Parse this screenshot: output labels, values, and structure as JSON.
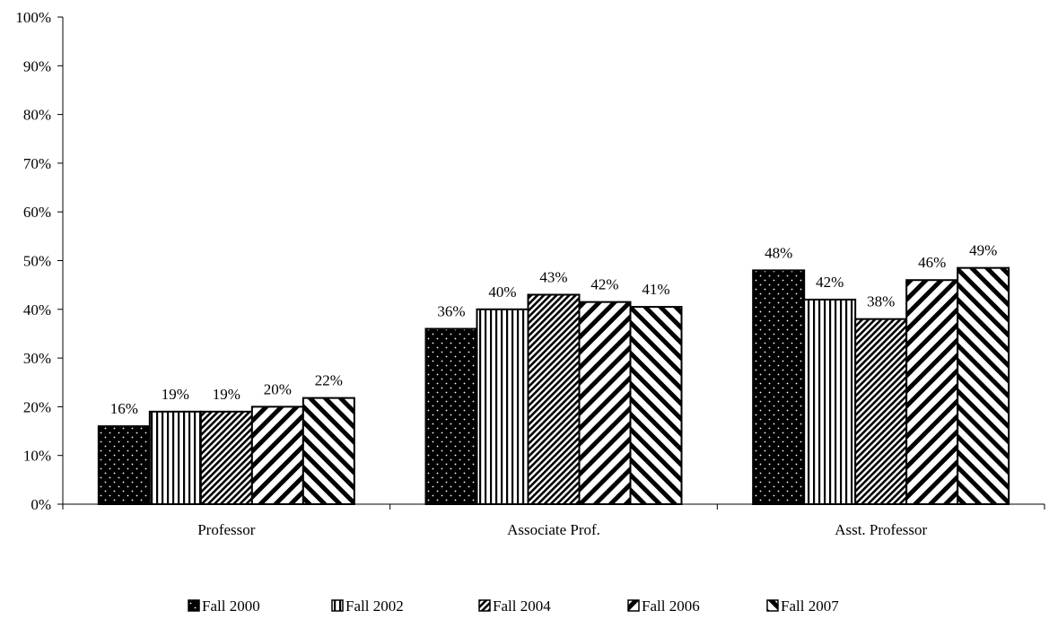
{
  "chart_data": {
    "type": "bar",
    "title": "",
    "xlabel": "",
    "ylabel": "",
    "ylim": [
      0,
      1
    ],
    "y_ticks": [
      "0%",
      "10%",
      "20%",
      "30%",
      "40%",
      "50%",
      "60%",
      "70%",
      "80%",
      "90%",
      "100%"
    ],
    "grid": false,
    "legend_position": "bottom",
    "categories": [
      "Professor",
      "Associate Prof.",
      "Asst. Professor"
    ],
    "series": [
      {
        "name": "Fall 2000",
        "values": [
          0.16,
          0.36,
          0.48
        ],
        "labels": [
          "16%",
          "36%",
          "48%"
        ],
        "pattern": "dots"
      },
      {
        "name": "Fall 2002",
        "values": [
          0.19,
          0.4,
          0.42
        ],
        "labels": [
          "19%",
          "40%",
          "42%"
        ],
        "pattern": "vertical"
      },
      {
        "name": "Fall 2004",
        "values": [
          0.19,
          0.43,
          0.38
        ],
        "labels": [
          "19%",
          "43%",
          "38%"
        ],
        "pattern": "diag-dense"
      },
      {
        "name": "Fall 2006",
        "values": [
          0.2,
          0.415,
          0.46
        ],
        "labels": [
          "20%",
          "42%",
          "46%"
        ],
        "pattern": "diag-up"
      },
      {
        "name": "Fall 2007",
        "values": [
          0.218,
          0.405,
          0.485
        ],
        "labels": [
          "22%",
          "41%",
          "49%"
        ],
        "pattern": "diag-down"
      }
    ],
    "colors": {
      "fill": "#000000",
      "background": "#ffffff",
      "axis": "#000000"
    }
  }
}
